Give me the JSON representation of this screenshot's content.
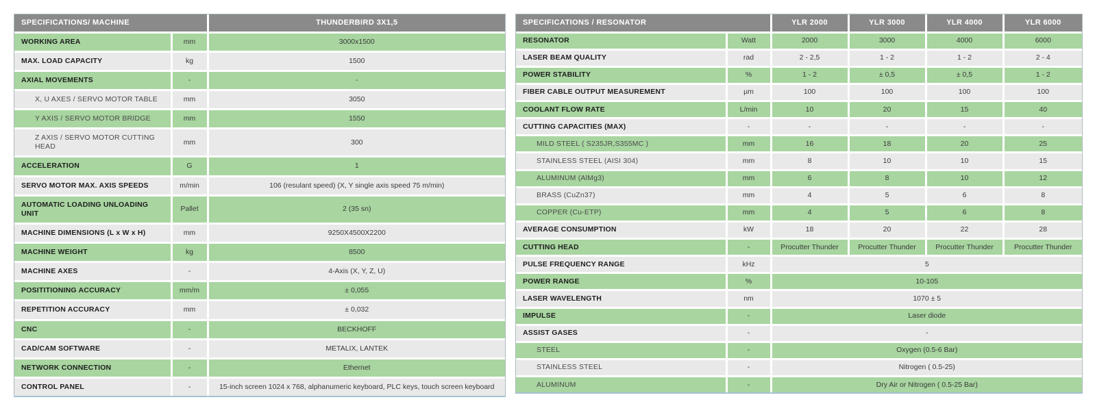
{
  "colors": {
    "header_bg": "#8a8a8a",
    "header_text": "#ffffff",
    "row_green": "#a8d5a0",
    "row_gray": "#e9e9e9",
    "separator": "#ffffff",
    "label_text": "#1e1e1e",
    "value_text": "#3a3a3a"
  },
  "machine_table": {
    "title": "SPECIFICATIONS/ MACHINE",
    "model": "THUNDERBIRD 3X1,5",
    "rows": [
      {
        "label": "WORKING AREA",
        "unit": "mm",
        "value": "3000x1500"
      },
      {
        "label": "MAX. LOAD CAPACITY",
        "unit": "kg",
        "value": "1500"
      },
      {
        "label": "AXIAL MOVEMENTS",
        "unit": "-",
        "value": "-"
      },
      {
        "label": "X, U AXES / SERVO MOTOR TABLE",
        "unit": "mm",
        "value": "3050",
        "sub": true
      },
      {
        "label": "Y AXIS / SERVO MOTOR BRIDGE",
        "unit": "mm",
        "value": "1550",
        "sub": true
      },
      {
        "label": "Z AXIS / SERVO MOTOR CUTTING HEAD",
        "unit": "mm",
        "value": "300",
        "sub": true
      },
      {
        "label": "ACCELERATION",
        "unit": "G",
        "value": "1"
      },
      {
        "label": "SERVO MOTOR MAX. AXIS SPEEDS",
        "unit": "m/min",
        "value": "106 (resulant speed) (X, Y single axis speed 75 m/min)"
      },
      {
        "label": "AUTOMATIC LOADING UNLOADING UNIT",
        "unit": "Pallet",
        "value": "2 (35 sn)"
      },
      {
        "label": "MACHINE DIMENSIONS (L x W x H)",
        "unit": "mm",
        "value": "9250X4500X2200"
      },
      {
        "label": "MACHINE WEIGHT",
        "unit": "kg",
        "value": "8500"
      },
      {
        "label": "MACHINE AXES",
        "unit": "-",
        "value": "4-Axis (X, Y, Z, U)"
      },
      {
        "label": "POSITITIONING ACCURACY",
        "unit": "mm/m",
        "value": "± 0,055"
      },
      {
        "label": "REPETITION ACCURACY",
        "unit": "mm",
        "value": "± 0,032"
      },
      {
        "label": "CNC",
        "unit": "-",
        "value": "BECKHOFF"
      },
      {
        "label": "CAD/CAM SOFTWARE",
        "unit": "-",
        "value": "METALIX, LANTEK"
      },
      {
        "label": "NETWORK CONNECTION",
        "unit": "-",
        "value": "Ethernet"
      },
      {
        "label": "CONTROL PANEL",
        "unit": "-",
        "value": "15-inch screen 1024 x 768, alphanumeric keyboard, PLC keys, touch screen keyboard"
      }
    ]
  },
  "resonator_table": {
    "title": "SPECIFICATIONS / RESONATOR",
    "models": [
      "YLR 2000",
      "YLR 3000",
      "YLR 4000",
      "YLR 6000"
    ],
    "rows": [
      {
        "label": "RESONATOR",
        "unit": "Watt",
        "values": [
          "2000",
          "3000",
          "4000",
          "6000"
        ]
      },
      {
        "label": "LASER BEAM QUALITY",
        "unit": "rad",
        "values": [
          "2 - 2,5",
          "1 - 2",
          "1 - 2",
          "2 - 4"
        ]
      },
      {
        "label": "POWER STABILITY",
        "unit": "%",
        "values": [
          "1 - 2",
          "± 0,5",
          "± 0,5",
          "1 - 2"
        ]
      },
      {
        "label": "FIBER CABLE OUTPUT MEASUREMENT",
        "unit": "µm",
        "values": [
          "100",
          "100",
          "100",
          "100"
        ]
      },
      {
        "label": "COOLANT FLOW RATE",
        "unit": "L/min",
        "values": [
          "10",
          "20",
          "15",
          "40"
        ]
      },
      {
        "label": "CUTTING CAPACITIES (MAX)",
        "unit": "-",
        "values": [
          "-",
          "-",
          "-",
          "-"
        ]
      },
      {
        "label": "MILD STEEL ( S235JR,S355MC )",
        "unit": "mm",
        "values": [
          "16",
          "18",
          "20",
          "25"
        ],
        "sub": true
      },
      {
        "label": "STAINLESS STEEL (AISI 304)",
        "unit": "mm",
        "values": [
          "8",
          "10",
          "10",
          "15"
        ],
        "sub": true
      },
      {
        "label": "ALUMINUM (AlMg3)",
        "unit": "mm",
        "values": [
          "6",
          "8",
          "10",
          "12"
        ],
        "sub": true
      },
      {
        "label": "BRASS (CuZn37)",
        "unit": "mm",
        "values": [
          "4",
          "5",
          "6",
          "8"
        ],
        "sub": true
      },
      {
        "label": "COPPER (Cu-ETP)",
        "unit": "mm",
        "values": [
          "4",
          "5",
          "6",
          "8"
        ],
        "sub": true
      },
      {
        "label": "AVERAGE CONSUMPTION",
        "unit": "kW",
        "values": [
          "18",
          "20",
          "22",
          "28"
        ]
      },
      {
        "label": "CUTTING HEAD",
        "unit": "-",
        "values": [
          "Procutter Thunder",
          "Procutter Thunder",
          "Procutter Thunder",
          "Procutter Thunder"
        ]
      },
      {
        "label": "PULSE FREQUENCY RANGE",
        "unit": "kHz",
        "span_value": "5"
      },
      {
        "label": "POWER RANGE",
        "unit": "%",
        "span_value": "10-105"
      },
      {
        "label": "LASER WAVELENGTH",
        "unit": "nm",
        "span_value": "1070 ± 5"
      },
      {
        "label": "IMPULSE",
        "unit": "-",
        "span_value": "Laser diode"
      },
      {
        "label": "ASSIST GASES",
        "unit": "-",
        "span_value": "-"
      },
      {
        "label": "STEEL",
        "unit": "-",
        "span_value": "Oxygen (0.5-6 Bar)",
        "sub": true
      },
      {
        "label": "STAINLESS STEEL",
        "unit": "-",
        "span_value": "Nitrogen ( 0.5-25)",
        "sub": true
      },
      {
        "label": "ALUMINUM",
        "unit": "-",
        "span_value": "Dry Air or Nitrogen ( 0.5-25 Bar)",
        "sub": true
      }
    ]
  }
}
